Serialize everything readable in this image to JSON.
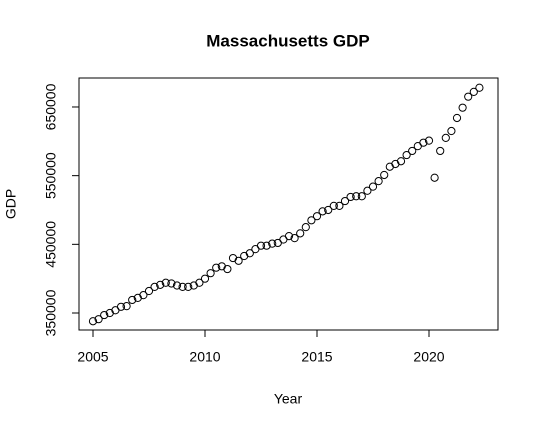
{
  "chart_data": {
    "type": "scatter",
    "title": "Massachusetts GDP",
    "x_label": "Year",
    "y_label": "GDP",
    "x": [
      2005,
      2005.25,
      2005.5,
      2005.75,
      2006,
      2006.25,
      2006.5,
      2006.75,
      2007,
      2007.25,
      2007.5,
      2007.75,
      2008,
      2008.25,
      2008.5,
      2008.75,
      2009,
      2009.25,
      2009.5,
      2009.75,
      2010,
      2010.25,
      2010.5,
      2010.75,
      2011,
      2011.25,
      2011.5,
      2011.75,
      2012,
      2012.25,
      2012.5,
      2012.75,
      2013,
      2013.25,
      2013.5,
      2013.75,
      2014,
      2014.25,
      2014.5,
      2014.75,
      2015,
      2015.25,
      2015.5,
      2015.75,
      2016,
      2016.25,
      2016.5,
      2016.75,
      2017,
      2017.25,
      2017.5,
      2017.75,
      2018,
      2018.25,
      2018.5,
      2018.75,
      2019,
      2019.25,
      2019.5,
      2019.75,
      2020,
      2020.25,
      2020.5,
      2020.75,
      2021,
      2021.25,
      2021.5,
      2021.75,
      2022,
      2022.25
    ],
    "values": [
      338000,
      341000,
      347000,
      350000,
      354000,
      359000,
      360000,
      369000,
      372000,
      376000,
      382000,
      388000,
      391000,
      394000,
      393000,
      390000,
      388000,
      388000,
      390000,
      394000,
      400000,
      408000,
      416000,
      418000,
      414000,
      430000,
      426000,
      433000,
      437000,
      443000,
      448000,
      448000,
      451000,
      452000,
      457000,
      462000,
      459000,
      466000,
      475000,
      485000,
      491000,
      498000,
      500000,
      506000,
      506000,
      513000,
      519000,
      520000,
      520000,
      528000,
      534000,
      542000,
      551000,
      563000,
      567000,
      571000,
      580000,
      586000,
      593000,
      598000,
      601000,
      547000,
      586000,
      605000,
      615000,
      634000,
      649000,
      665000,
      672000,
      678000
    ],
    "color": "#000000",
    "xlim": [
      2004.375,
      2023.08
    ],
    "xticks": [
      2005,
      2010,
      2015,
      2020
    ],
    "ylim": [
      325250,
      692200
    ],
    "yticks": [
      350000,
      450000,
      550000,
      650000
    ],
    "grid": false
  }
}
